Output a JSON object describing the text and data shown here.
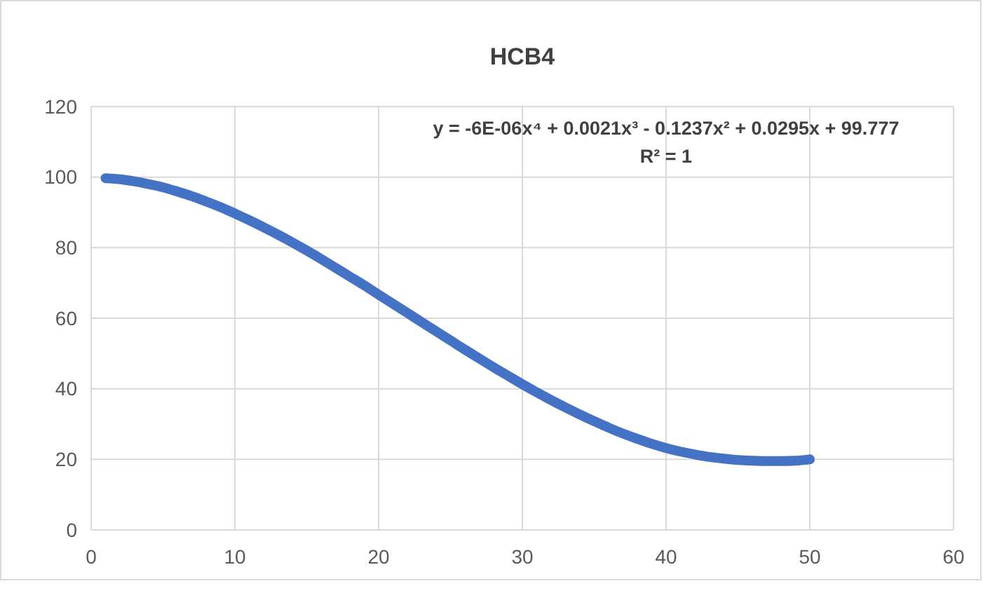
{
  "chart_data": {
    "type": "line",
    "title": "HCB4",
    "annotations": [
      "y = -6E-06x⁴ + 0.0021x³ - 0.1237x² + 0.0295x + 99.777",
      "R² = 1"
    ],
    "x": [
      1,
      2,
      3,
      4,
      5,
      6,
      7,
      8,
      9,
      10,
      11,
      12,
      13,
      14,
      15,
      16,
      17,
      18,
      19,
      20,
      21,
      22,
      23,
      24,
      25,
      26,
      27,
      28,
      29,
      30,
      31,
      32,
      33,
      34,
      35,
      36,
      37,
      38,
      39,
      40,
      41,
      42,
      43,
      44,
      45,
      46,
      47,
      48,
      49,
      50
    ],
    "series": [
      {
        "color": "#4472c4",
        "values": [
          99.7,
          99.4,
          98.8,
          98.0,
          97.1,
          95.9,
          94.6,
          93.1,
          91.5,
          89.7,
          87.8,
          85.8,
          83.7,
          81.5,
          79.2,
          76.8,
          74.3,
          71.8,
          69.3,
          66.7,
          64.1,
          61.5,
          58.9,
          56.3,
          53.7,
          51.1,
          48.6,
          46.1,
          43.7,
          41.3,
          39.0,
          36.8,
          34.7,
          32.7,
          30.8,
          29.0,
          27.3,
          25.8,
          24.4,
          23.2,
          22.2,
          21.4,
          20.7,
          20.2,
          19.8,
          19.6,
          19.5,
          19.5,
          19.6,
          20.0
        ]
      }
    ],
    "xlim": [
      0,
      60
    ],
    "xticks": [
      0,
      10,
      20,
      30,
      40,
      50,
      60
    ],
    "ylim": [
      0,
      120
    ],
    "yticks": [
      0,
      20,
      40,
      60,
      80,
      100,
      120
    ],
    "grid": true,
    "marker": "none",
    "line_style": "solid"
  }
}
